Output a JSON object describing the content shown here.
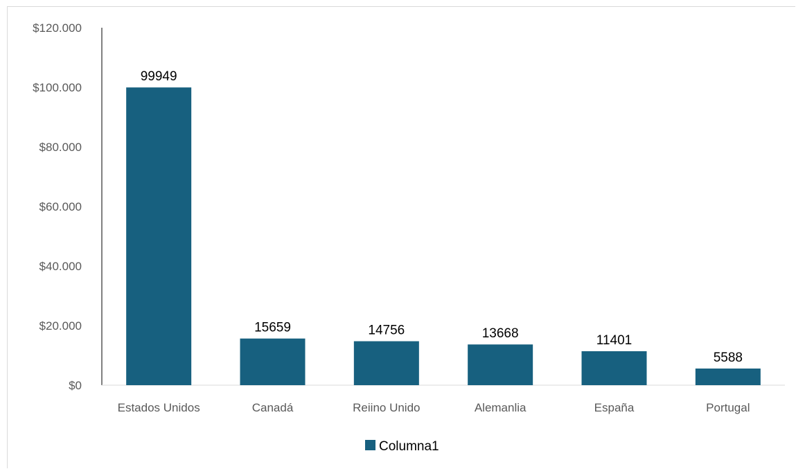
{
  "chart_data": {
    "type": "bar",
    "categories": [
      "Estados Unidos",
      "Canadá",
      "Reiino Unido",
      "Alemanlia",
      "España",
      "Portugal"
    ],
    "series": [
      {
        "name": "Columna1",
        "values": [
          99949,
          15659,
          14756,
          13668,
          11401,
          5588
        ]
      }
    ],
    "data_labels": [
      "99949",
      "15659",
      "14756",
      "13668",
      "11401",
      "5588"
    ],
    "y_ticks": [
      0,
      20000,
      40000,
      60000,
      80000,
      100000,
      120000
    ],
    "y_tick_labels": [
      "$0",
      "$20.000",
      "$40.000",
      "$60.000",
      "$80.000",
      "$100.000",
      "$120.000"
    ],
    "ylim": [
      0,
      120000
    ],
    "grid": false,
    "legend_position": "bottom",
    "bar_color": "#17607f"
  }
}
